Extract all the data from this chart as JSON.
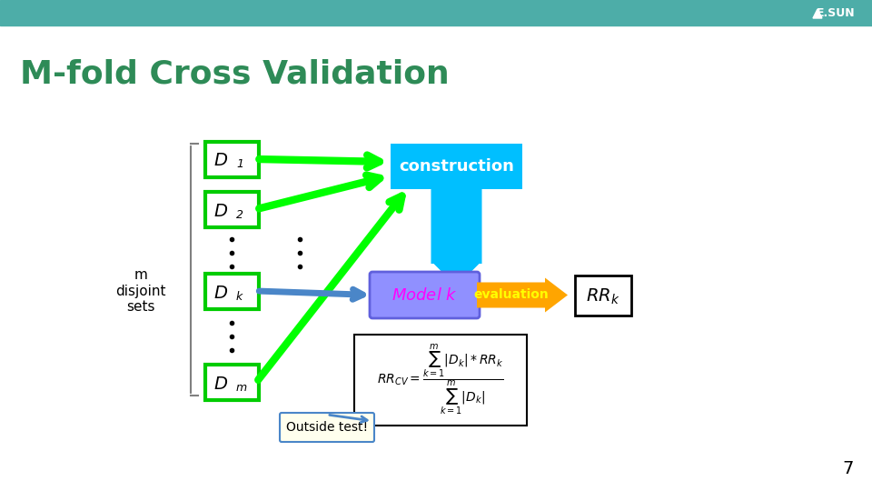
{
  "title": "M-fold Cross Validation",
  "title_color": "#2E8B57",
  "bg_color": "#FFFFFF",
  "header_color": "#4DADA8",
  "page_number": "7",
  "teal_stripe_color": "#4DADA8",
  "label_text": "m\ndisjoint\nsets",
  "d_labels": [
    "D_1",
    "D_2",
    "D_k",
    "D_m"
  ],
  "d_box_color": "#00CC00",
  "d_text_color": "#000000",
  "construction_box_color": "#00BFFF",
  "construction_text": "construction",
  "construction_text_color": "#FFFFFF",
  "model_box_color": "#9090FF",
  "model_text": "Model k",
  "model_text_color": "#FF00FF",
  "evaluation_arrow_color": "#FFA500",
  "evaluation_text": "evaluation",
  "evaluation_text_color": "#FFFF00",
  "rr_box_border": "#000000",
  "rr_text": "RR_k",
  "green_arrow_color": "#00FF00",
  "blue_arrow_color": "#4A86C8",
  "formula_box_color": "#FFFFFF",
  "formula_border": "#000000",
  "outside_test_text": "Outside test!",
  "outside_test_border": "#4A86C8",
  "esun_text_color": "#888888"
}
